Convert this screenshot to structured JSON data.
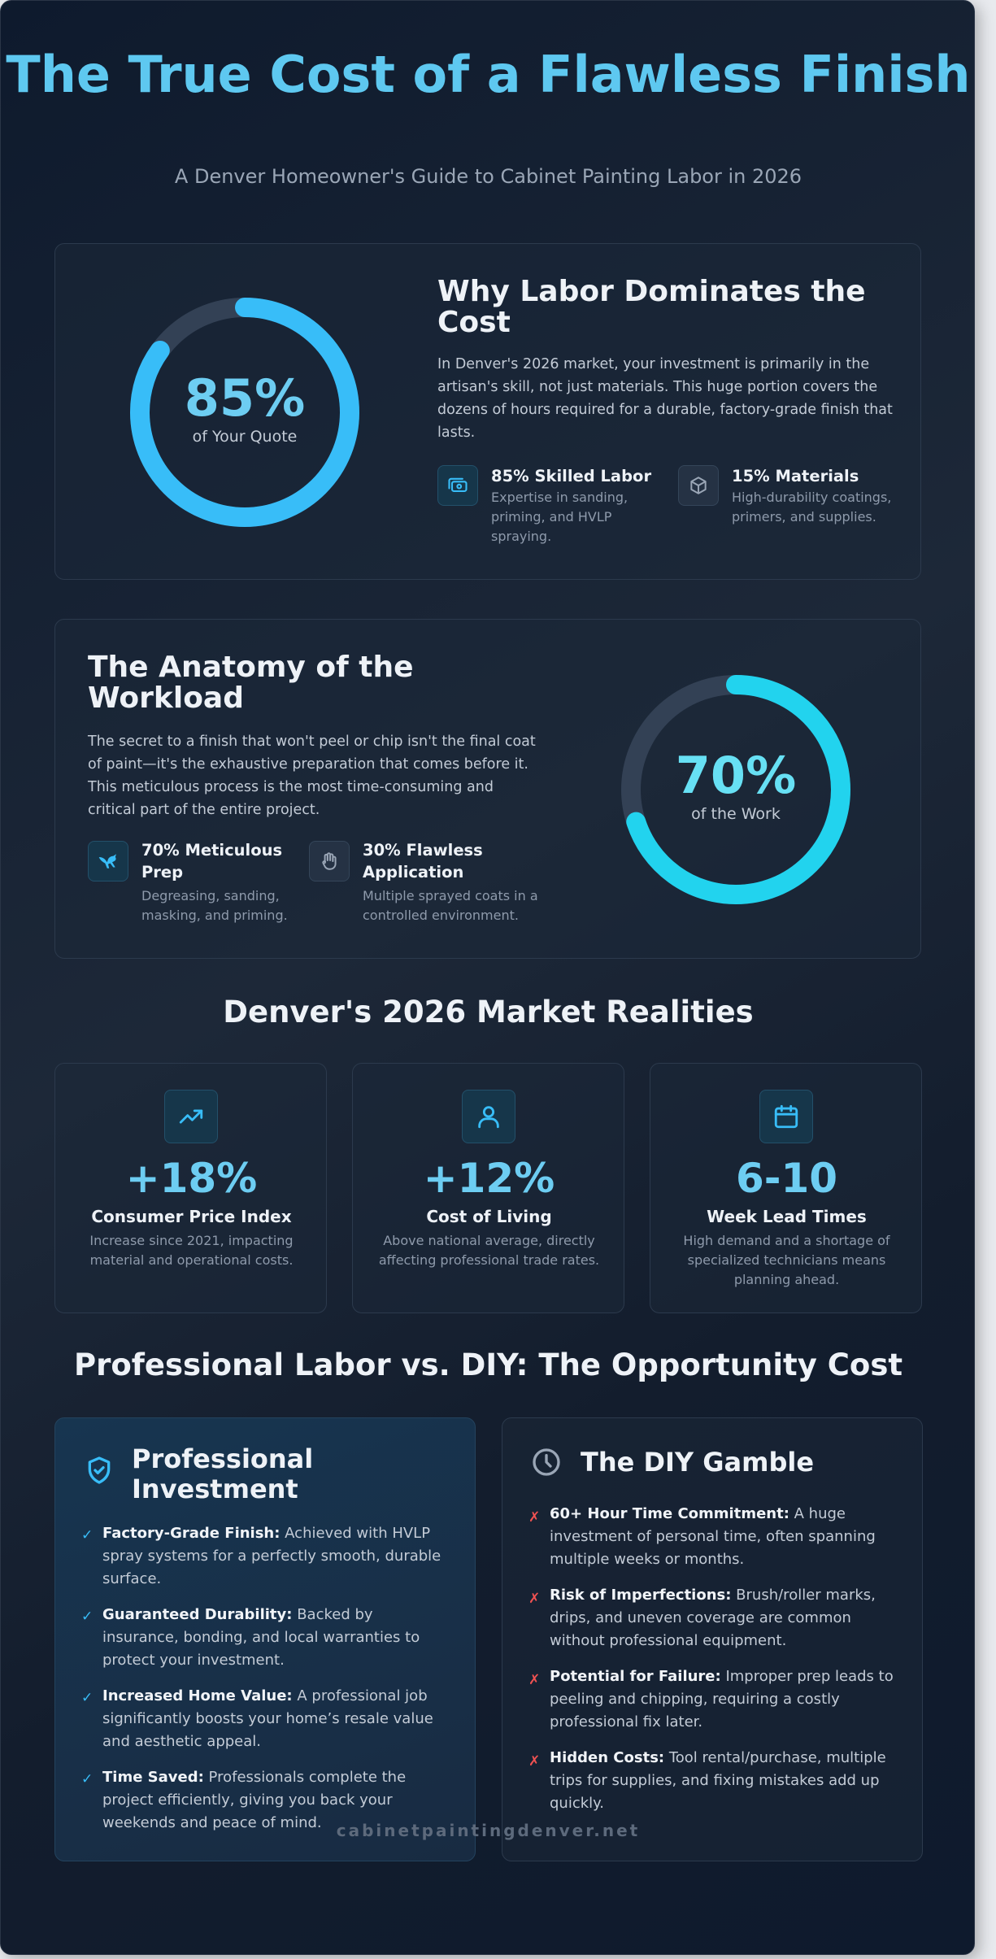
{
  "header": {
    "title": "The True Cost of a Flawless Finish",
    "subtitle": "A Denver Homeowner's Guide to Cabinet Painting Labor in 2026"
  },
  "labor": {
    "ring_value": "85%",
    "ring_caption": "of Your Quote",
    "ring_fraction": 0.85,
    "ring_color": "#38bdf8",
    "heading": "Why Labor Dominates the Cost",
    "body": "In Denver's 2026 market, your investment is primarily in the artisan's skill, not just materials. This huge portion covers the dozens of hours required for a durable, factory-grade finish that lasts.",
    "features": [
      {
        "icon": "money-icon",
        "title": "85% Skilled Labor",
        "desc": "Expertise in sanding, priming, and HVLP spraying."
      },
      {
        "icon": "box-icon",
        "title": "15% Materials",
        "desc": "High-durability coatings, primers, and supplies."
      }
    ]
  },
  "workload": {
    "heading": "The Anatomy of the Workload",
    "body": "The secret to a finish that won't peel or chip isn't the final coat of paint—it's the exhaustive preparation that comes before it. This meticulous process is the most time-consuming and critical part of the entire project.",
    "ring_value": "70%",
    "ring_caption": "of the Work",
    "ring_fraction": 0.7,
    "ring_color": "#22d3ee",
    "features": [
      {
        "icon": "pterodactyl-icon",
        "title": "70% Meticulous Prep",
        "desc": "Degreasing, sanding, masking, and priming."
      },
      {
        "icon": "hand-icon",
        "title": "30% Flawless Application",
        "desc": "Multiple sprayed coats in a controlled environment."
      }
    ]
  },
  "market": {
    "heading": "Denver's 2026 Market Realities",
    "stats": [
      {
        "icon": "trending-up-icon",
        "value": "+18%",
        "label": "Consumer Price Index",
        "desc": "Increase since 2021, impacting material and operational costs."
      },
      {
        "icon": "user-icon",
        "value": "+12%",
        "label": "Cost of Living",
        "desc": "Above national average, directly affecting professional trade rates."
      },
      {
        "icon": "calendar-icon",
        "value": "6-10",
        "label": "Week Lead Times",
        "desc": "High demand and a shortage of specialized technicians means planning ahead."
      }
    ]
  },
  "comparison": {
    "heading": "Professional Labor vs. DIY: The Opportunity Cost",
    "pro": {
      "title": "Professional Investment",
      "icon": "shield-check-icon",
      "items": [
        {
          "strong": "Factory-Grade Finish:",
          "text": " Achieved with HVLP spray systems for a perfectly smooth, durable surface."
        },
        {
          "strong": "Guaranteed Durability:",
          "text": " Backed by insurance, bonding, and local warranties to protect your investment."
        },
        {
          "strong": "Increased Home Value:",
          "text": " A professional job significantly boosts your home’s resale value and aesthetic appeal."
        },
        {
          "strong": "Time Saved:",
          "text": " Professionals complete the project efficiently, giving you back your weekends and peace of mind."
        }
      ]
    },
    "diy": {
      "title": "The DIY Gamble",
      "icon": "clock-icon",
      "items": [
        {
          "strong": "60+ Hour Time Commitment:",
          "text": " A huge investment of personal time, often spanning multiple weeks or months."
        },
        {
          "strong": "Risk of Imperfections:",
          "text": " Brush/roller marks, drips, and uneven coverage are common without professional equipment."
        },
        {
          "strong": "Potential for Failure:",
          "text": " Improper prep leads to peeling and chipping, requiring a costly professional fix later."
        },
        {
          "strong": "Hidden Costs:",
          "text": " Tool rental/purchase, multiple trips for supplies, and fixing mistakes add up quickly."
        }
      ]
    },
    "check_mark": "✓",
    "cross_mark": "✗"
  },
  "footer": {
    "site": "cabinetpaintingdenver.net"
  }
}
